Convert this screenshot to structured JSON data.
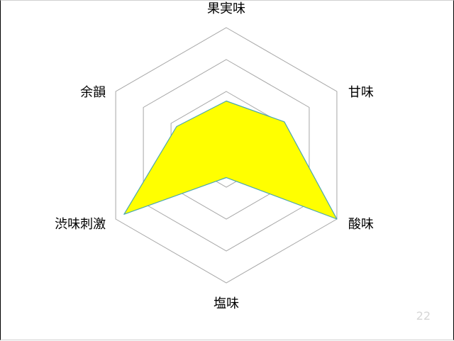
{
  "slide": {
    "page_number": "22"
  },
  "colors": {
    "fill": "#ffff00",
    "outline": "#4aa7b0",
    "grid": "#a6a6a6",
    "page_number": "#d6d6d6"
  },
  "chart_data": {
    "type": "radar",
    "title": "",
    "axes": [
      "果実味",
      "甘味",
      "酸味",
      "塩味",
      "渋味刺激",
      "余韻"
    ],
    "levels": 4,
    "range": [
      0,
      4
    ],
    "grid": true,
    "legend": "none",
    "series": [
      {
        "values": [
          1.7,
          2.1,
          4.0,
          0.7,
          3.7,
          1.8
        ]
      }
    ]
  }
}
